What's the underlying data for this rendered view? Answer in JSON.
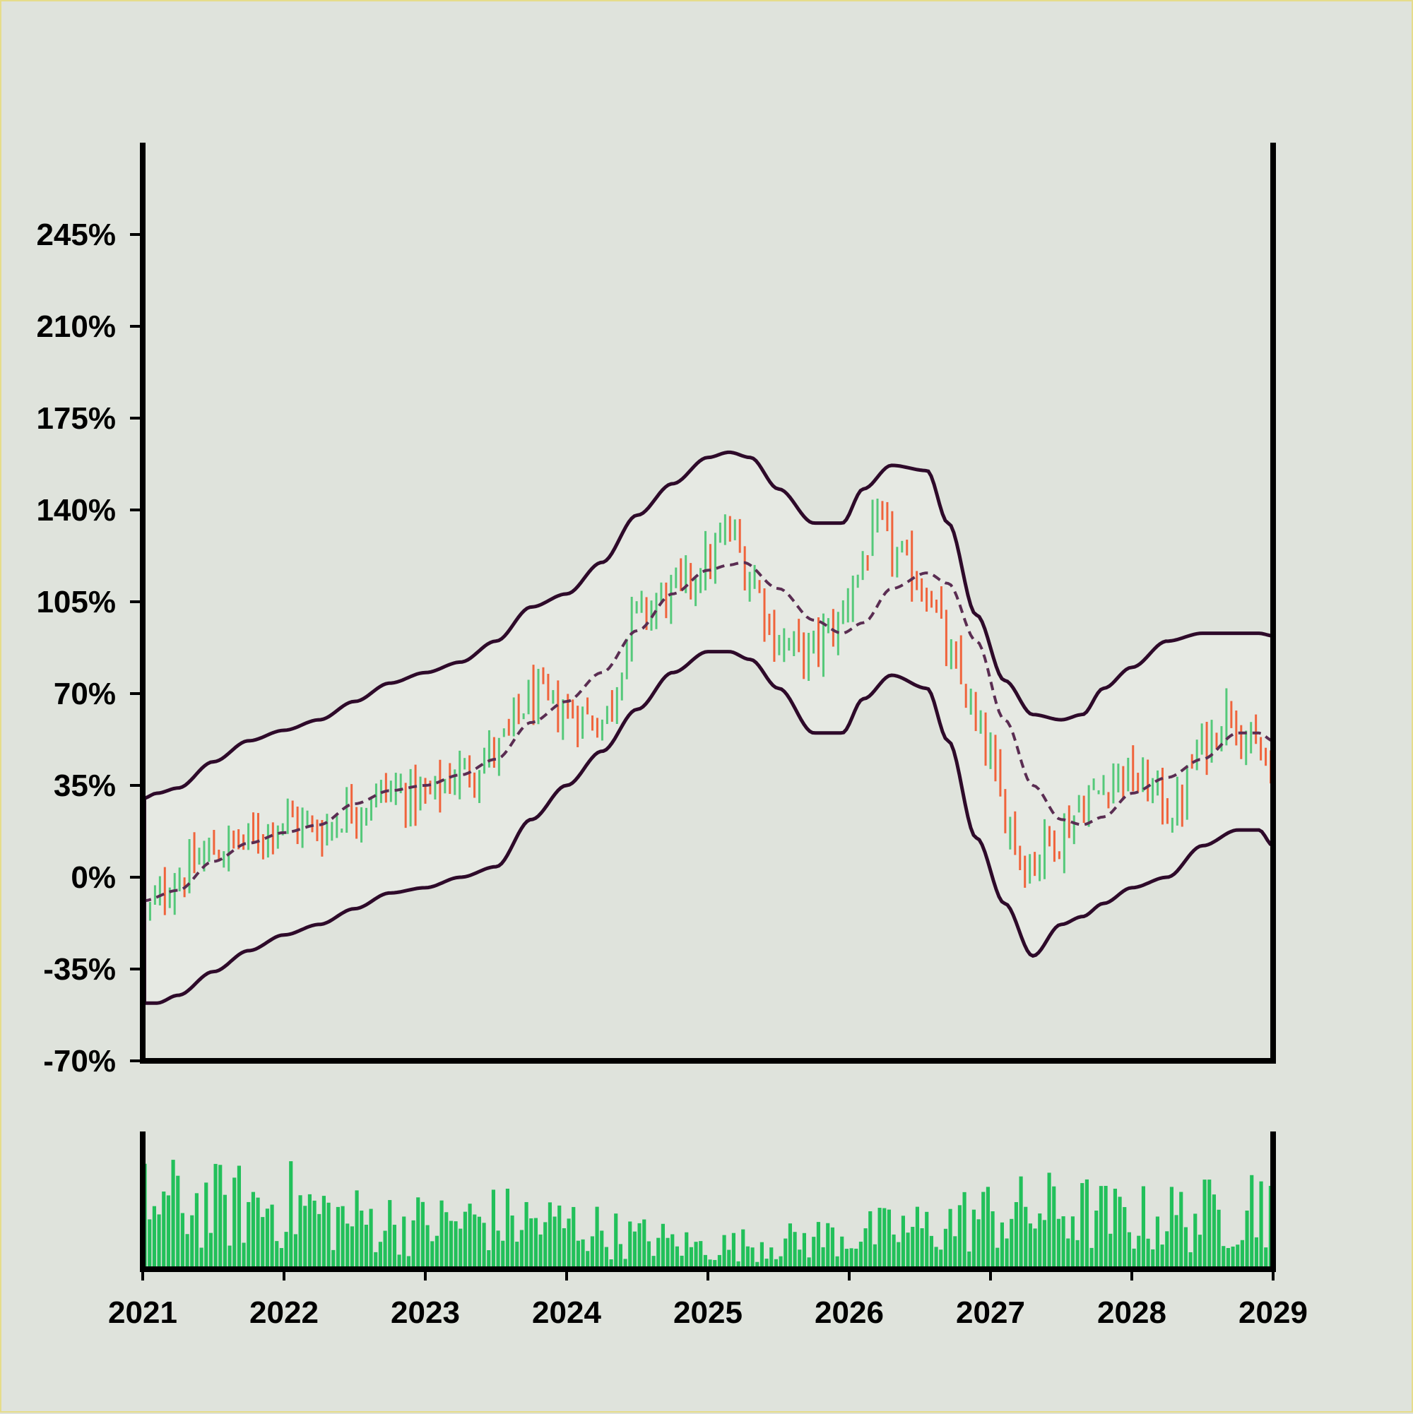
{
  "chart_data": [
    {
      "type": "candlestick",
      "title": "",
      "xlabel": "",
      "ylabel": "",
      "ylim": [
        -70,
        280
      ],
      "xlim": [
        2021,
        2029
      ],
      "y_ticks": [
        "245%",
        "210%",
        "175%",
        "140%",
        "105%",
        "70%",
        "35%",
        "0%",
        "-35%",
        "-70%"
      ],
      "y_tick_values": [
        245,
        210,
        175,
        140,
        105,
        70,
        35,
        0,
        -35,
        -70
      ],
      "x_ticks": [
        "2021",
        "2022",
        "2023",
        "2024",
        "2025",
        "2026",
        "2027",
        "2028",
        "2029"
      ],
      "x_tick_values": [
        2021,
        2022,
        2023,
        2024,
        2025,
        2026,
        2027,
        2028,
        2029
      ],
      "grid": false,
      "up_color": "#55c97a",
      "down_color": "#f0643c",
      "band_fill": "#e6e9e3",
      "band_line_color": "#2e0a2a",
      "middle_line_color": "#5a2d52",
      "middle_line_style": "dashed",
      "price_path": {
        "t": [
          2021.0,
          2021.25,
          2021.5,
          2021.75,
          2022.0,
          2022.25,
          2022.5,
          2022.75,
          2023.0,
          2023.25,
          2023.5,
          2023.75,
          2024.0,
          2024.25,
          2024.5,
          2024.75,
          2025.0,
          2025.15,
          2025.3,
          2025.5,
          2025.7,
          2025.9,
          2026.05,
          2026.2,
          2026.4,
          2026.55,
          2026.75,
          2026.95,
          2027.1,
          2027.25,
          2027.45,
          2027.7,
          2027.9,
          2028.1,
          2028.3,
          2028.5,
          2028.7,
          2028.85,
          2029.0
        ],
        "v": [
          -15,
          0,
          10,
          14,
          22,
          18,
          27,
          33,
          30,
          40,
          48,
          68,
          63,
          60,
          100,
          108,
          120,
          132,
          115,
          90,
          85,
          95,
          115,
          133,
          118,
          110,
          78,
          52,
          25,
          5,
          15,
          30,
          40,
          35,
          25,
          50,
          65,
          48,
          40
        ]
      },
      "middle_band": {
        "t": [
          2021.0,
          2021.25,
          2021.5,
          2021.75,
          2022.0,
          2022.25,
          2022.5,
          2022.75,
          2023.0,
          2023.25,
          2023.5,
          2023.75,
          2024.0,
          2024.25,
          2024.5,
          2024.75,
          2025.0,
          2025.15,
          2025.25,
          2025.5,
          2025.75,
          2025.95,
          2026.1,
          2026.3,
          2026.55,
          2026.7,
          2026.9,
          2027.1,
          2027.3,
          2027.5,
          2027.65,
          2027.8,
          2028.0,
          2028.25,
          2028.5,
          2028.75,
          2028.9,
          2029.0
        ],
        "v": [
          -9,
          -5,
          6,
          13,
          17,
          20,
          28,
          33,
          35,
          39,
          45,
          59,
          67,
          78,
          94,
          108,
          117,
          119,
          120,
          110,
          98,
          93,
          97,
          110,
          116,
          112,
          90,
          60,
          35,
          22,
          20,
          23,
          32,
          38,
          45,
          55,
          55,
          52
        ]
      },
      "upper_band": {
        "t": [
          2021.0,
          2021.1,
          2021.25,
          2021.5,
          2021.75,
          2022.0,
          2022.25,
          2022.5,
          2022.75,
          2023.0,
          2023.25,
          2023.5,
          2023.75,
          2024.0,
          2024.25,
          2024.5,
          2024.75,
          2025.0,
          2025.15,
          2025.3,
          2025.5,
          2025.75,
          2025.95,
          2026.1,
          2026.3,
          2026.55,
          2026.7,
          2026.9,
          2027.1,
          2027.3,
          2027.5,
          2027.65,
          2027.8,
          2028.0,
          2028.25,
          2028.5,
          2028.75,
          2028.9,
          2029.0
        ],
        "v": [
          30,
          32,
          34,
          44,
          52,
          56,
          60,
          67,
          74,
          78,
          82,
          90,
          103,
          108,
          120,
          138,
          150,
          160,
          162,
          160,
          148,
          135,
          135,
          148,
          157,
          155,
          135,
          100,
          75,
          62,
          60,
          62,
          72,
          80,
          90,
          93,
          93,
          93,
          92
        ]
      },
      "lower_band": {
        "t": [
          2021.0,
          2021.1,
          2021.25,
          2021.5,
          2021.75,
          2022.0,
          2022.25,
          2022.5,
          2022.75,
          2023.0,
          2023.25,
          2023.5,
          2023.75,
          2024.0,
          2024.25,
          2024.5,
          2024.75,
          2025.0,
          2025.15,
          2025.3,
          2025.5,
          2025.75,
          2025.95,
          2026.1,
          2026.3,
          2026.55,
          2026.7,
          2026.9,
          2027.1,
          2027.3,
          2027.5,
          2027.65,
          2027.8,
          2028.0,
          2028.25,
          2028.5,
          2028.75,
          2028.9,
          2029.0
        ],
        "v": [
          -48,
          -48,
          -45,
          -36,
          -28,
          -22,
          -18,
          -12,
          -6,
          -4,
          0,
          4,
          22,
          35,
          48,
          64,
          78,
          86,
          86,
          83,
          72,
          55,
          55,
          68,
          77,
          72,
          52,
          15,
          -10,
          -30,
          -18,
          -15,
          -10,
          -4,
          0,
          12,
          18,
          18,
          12
        ]
      },
      "volume_panel": {
        "color": "#22c05a",
        "ylim": [
          0,
          1
        ],
        "pattern_t": [
          2021.0,
          2021.5,
          2022.0,
          2022.5,
          2023.0,
          2023.5,
          2024.0,
          2024.5,
          2025.0,
          2025.5,
          2026.0,
          2026.5,
          2027.0,
          2027.5,
          2028.0,
          2028.5,
          2029.0
        ],
        "pattern_v": [
          0.75,
          0.7,
          0.72,
          0.55,
          0.5,
          0.55,
          0.5,
          0.35,
          0.25,
          0.3,
          0.38,
          0.45,
          0.6,
          0.65,
          0.55,
          0.6,
          0.8
        ]
      }
    }
  ]
}
